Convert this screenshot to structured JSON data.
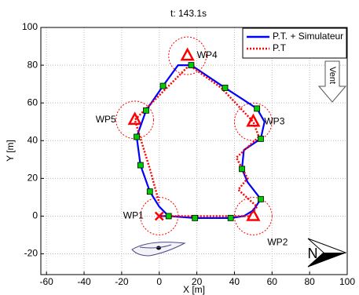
{
  "chart_data": {
    "type": "line",
    "title": "t: 143.1s",
    "xlabel": "X [m]",
    "ylabel": "Y [m]",
    "xlim": [
      -63,
      100
    ],
    "ylim": [
      -31,
      100
    ],
    "xticks": [
      -60,
      -40,
      -20,
      0,
      20,
      40,
      60,
      80,
      100
    ],
    "yticks": [
      -20,
      0,
      20,
      40,
      60,
      80,
      100
    ],
    "grid": true,
    "legend": "upper right",
    "series": [
      {
        "name": "P.T. + Simulateur",
        "color": "#0000ff",
        "style": "solid",
        "x": [
          0,
          5,
          19,
          38,
          45,
          50,
          54,
          47,
          44,
          45,
          54,
          56,
          52,
          35,
          17,
          10,
          2,
          -7,
          -12,
          -10,
          -5,
          0,
          5
        ],
        "values": [
          0,
          0,
          -1,
          -1,
          0,
          3,
          9,
          18,
          25,
          35,
          41,
          50,
          57,
          68,
          80,
          80,
          69,
          56,
          42,
          27,
          13,
          5,
          0
        ]
      },
      {
        "name": "P.T",
        "color": "#ff0000",
        "style": "dotted",
        "x": [
          0,
          48,
          52,
          42,
          47,
          41,
          53,
          50,
          33,
          16,
          -13,
          -5,
          0
        ],
        "values": [
          0,
          0,
          5,
          14,
          20,
          31,
          42,
          50,
          68,
          80,
          51,
          25,
          7
        ]
      }
    ],
    "squares": {
      "color": "#00cc00",
      "x": [
        5,
        19,
        38,
        54,
        44,
        54,
        52,
        35,
        17,
        2,
        -7,
        -12,
        -10,
        -5
      ],
      "values": [
        0,
        -1,
        -1,
        9,
        25,
        41,
        57,
        68,
        80,
        69,
        56,
        42,
        27,
        13
      ]
    },
    "waypoint_radius": 10,
    "waypoints": [
      {
        "label": "WP1",
        "x": 0,
        "y": 0,
        "marker": "x"
      },
      {
        "label": "WP2",
        "x": 50,
        "y": 0,
        "marker": "triangle"
      },
      {
        "label": "WP3",
        "x": 50,
        "y": 50,
        "marker": "triangle"
      },
      {
        "label": "WP4",
        "x": 15,
        "y": 85,
        "marker": "triangle"
      },
      {
        "label": "WP5",
        "x": -13,
        "y": 51,
        "marker": "triangle"
      }
    ],
    "wind_label": "Vent",
    "north_label": "N"
  }
}
